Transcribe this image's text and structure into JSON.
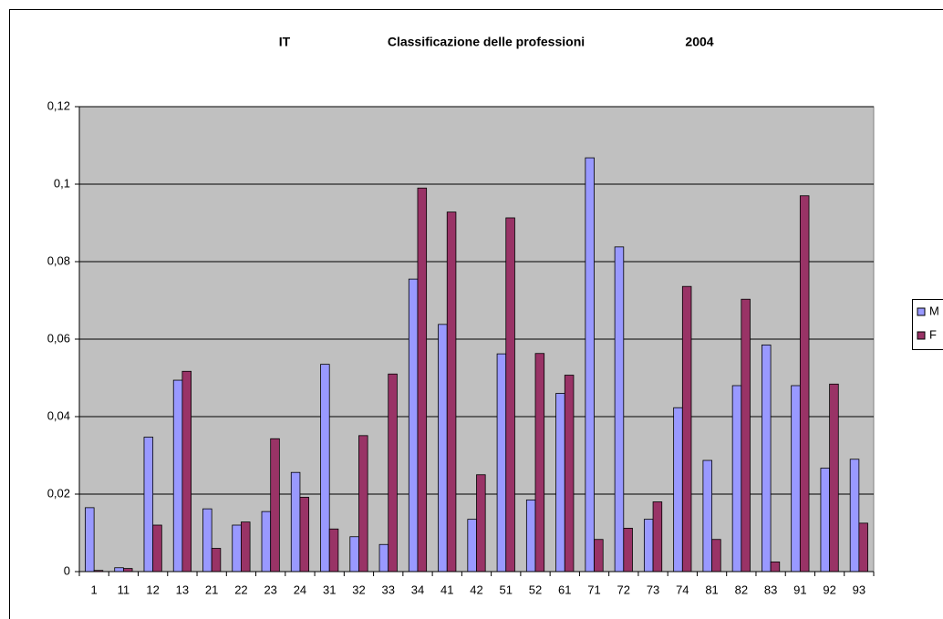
{
  "chart_data": {
    "type": "bar",
    "title": [
      "IT",
      "Classificazione delle professioni",
      "2004"
    ],
    "categories": [
      "1",
      "11",
      "12",
      "13",
      "21",
      "22",
      "23",
      "24",
      "31",
      "32",
      "33",
      "34",
      "41",
      "42",
      "51",
      "52",
      "61",
      "71",
      "72",
      "73",
      "74",
      "81",
      "82",
      "83",
      "91",
      "92",
      "93"
    ],
    "series": [
      {
        "name": "M",
        "color": "#9999ff",
        "values": [
          0.0165,
          0.001,
          0.0347,
          0.0494,
          0.0162,
          0.012,
          0.0155,
          0.0256,
          0.0535,
          0.009,
          0.007,
          0.0755,
          0.0638,
          0.0135,
          0.0562,
          0.0185,
          0.046,
          0.1068,
          0.0838,
          0.0135,
          0.0423,
          0.0287,
          0.048,
          0.0585,
          0.048,
          0.0267,
          0.029
        ]
      },
      {
        "name": "F",
        "color": "#993366",
        "values": [
          0.0003,
          0.0008,
          0.012,
          0.0517,
          0.006,
          0.0128,
          0.0343,
          0.0192,
          0.011,
          0.0351,
          0.051,
          0.099,
          0.0928,
          0.025,
          0.0913,
          0.0563,
          0.0507,
          0.0083,
          0.0112,
          0.018,
          0.0736,
          0.0083,
          0.0703,
          0.0025,
          0.097,
          0.0484,
          0.0125
        ]
      }
    ],
    "ylim": [
      0,
      0.12
    ],
    "yticks": [
      0,
      {
        "value": 0.02,
        "label": "0,02"
      },
      {
        "value": 0.04,
        "label": "0,04"
      },
      {
        "value": 0.06,
        "label": "0,06"
      },
      {
        "value": 0.08,
        "label": "0,08"
      },
      {
        "value": 0.1,
        "label": "0,1"
      },
      {
        "value": 0.12,
        "label": "0,12"
      }
    ],
    "grid": true,
    "legend": "right"
  }
}
